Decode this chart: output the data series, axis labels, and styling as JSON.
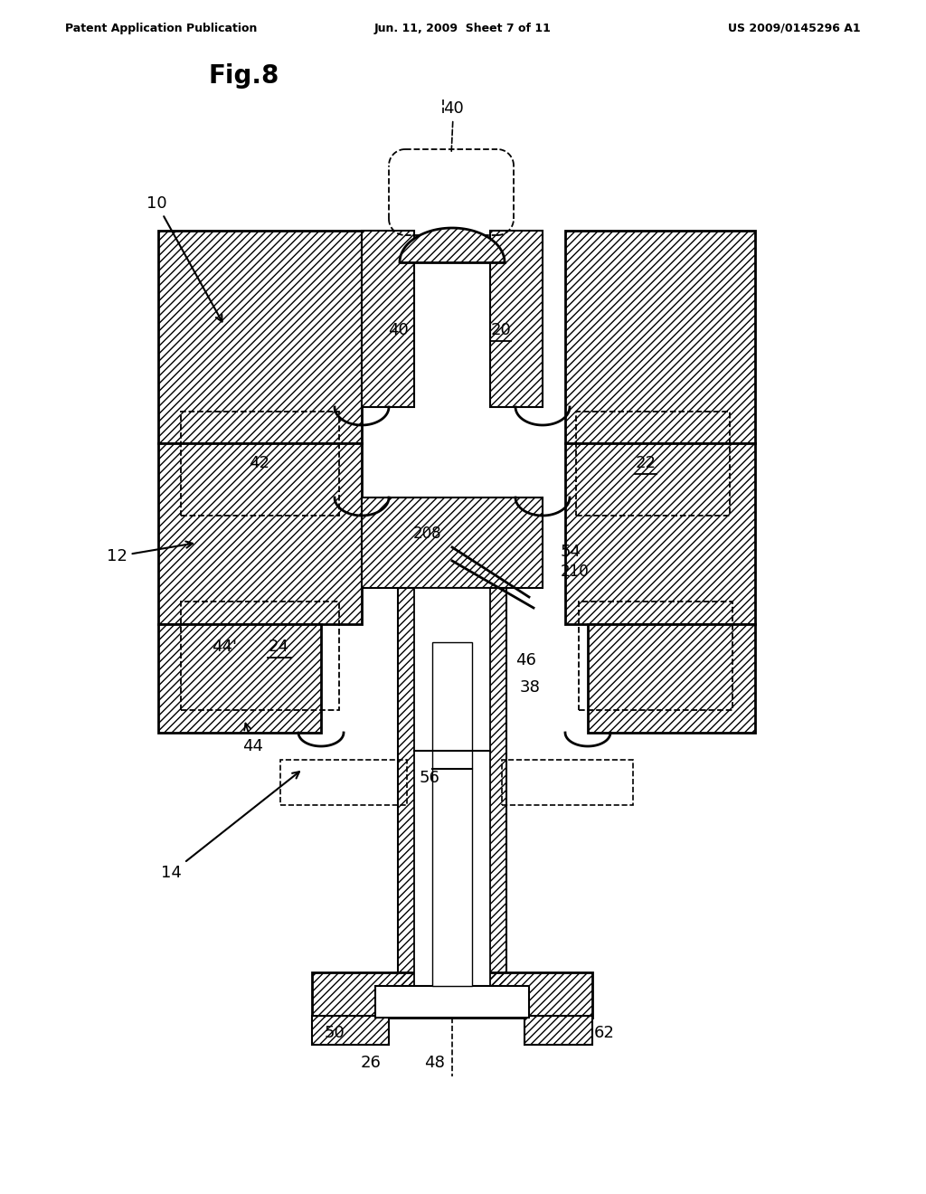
{
  "header_left": "Patent Application Publication",
  "header_mid": "Jun. 11, 2009  Sheet 7 of 11",
  "header_right": "US 2009/0145296 A1",
  "fig_title": "Fig.8",
  "bg_color": "#ffffff"
}
